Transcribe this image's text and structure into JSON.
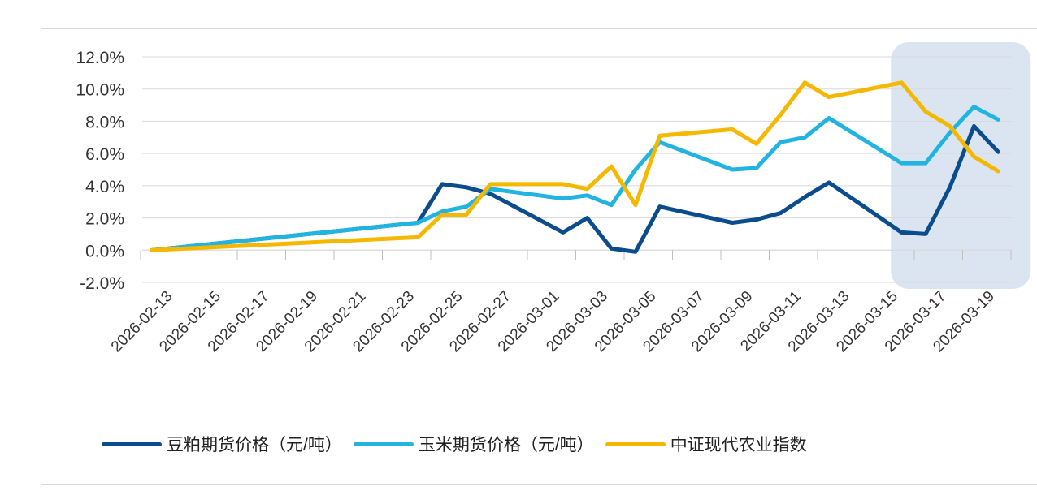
{
  "chart_data": {
    "type": "line",
    "x": [
      "2026-02-13",
      "2026-02-24",
      "2026-02-25",
      "2026-02-26",
      "2026-02-27",
      "2026-03-02",
      "2026-03-03",
      "2026-03-04",
      "2026-03-05",
      "2026-03-06",
      "2026-03-09",
      "2026-03-10",
      "2026-03-11",
      "2026-03-12",
      "2026-03-13",
      "2026-03-16",
      "2026-03-17",
      "2026-03-18",
      "2026-03-19",
      "2026-03-20"
    ],
    "xticks": [
      "2026-02-13",
      "2026-02-15",
      "2026-02-17",
      "2026-02-19",
      "2026-02-21",
      "2026-02-23",
      "2026-02-25",
      "2026-02-27",
      "2026-03-01",
      "2026-03-03",
      "2026-03-05",
      "2026-03-07",
      "2026-03-09",
      "2026-03-11",
      "2026-03-13",
      "2026-03-15",
      "2026-03-17",
      "2026-03-19"
    ],
    "yticks": [
      "12.0%",
      "10.0%",
      "8.0%",
      "6.0%",
      "4.0%",
      "2.0%",
      "0.0%",
      "-2.0%"
    ],
    "ylim": [
      -2,
      12
    ],
    "yunit": "%",
    "series": [
      {
        "name": "豆粕期货价格（元/吨）",
        "color": "#0b4c8c",
        "values": [
          0.0,
          1.7,
          4.1,
          3.9,
          3.5,
          1.1,
          2.0,
          0.1,
          -0.1,
          2.7,
          1.7,
          1.9,
          2.3,
          3.3,
          4.2,
          1.1,
          1.0,
          3.9,
          7.7,
          6.1
        ]
      },
      {
        "name": "玉米期货价格（元/吨）",
        "color": "#22b4e0",
        "values": [
          0.0,
          1.7,
          2.4,
          2.7,
          3.8,
          3.2,
          3.4,
          2.8,
          5.0,
          6.7,
          5.0,
          5.1,
          6.7,
          7.0,
          8.2,
          5.4,
          5.4,
          7.3,
          8.9,
          8.1
        ]
      },
      {
        "name": "中证现代农业指数",
        "color": "#f5b800",
        "values": [
          0.0,
          0.8,
          2.2,
          2.2,
          4.1,
          4.1,
          3.8,
          5.2,
          2.8,
          7.1,
          7.5,
          6.6,
          8.4,
          10.4,
          9.5,
          10.4,
          8.6,
          7.7,
          5.8,
          4.9
        ]
      }
    ],
    "highlight": {
      "from": "2026-03-16",
      "to": "2026-03-20",
      "color": "#dbe5f2"
    },
    "grid": true,
    "legend": "bottom"
  }
}
